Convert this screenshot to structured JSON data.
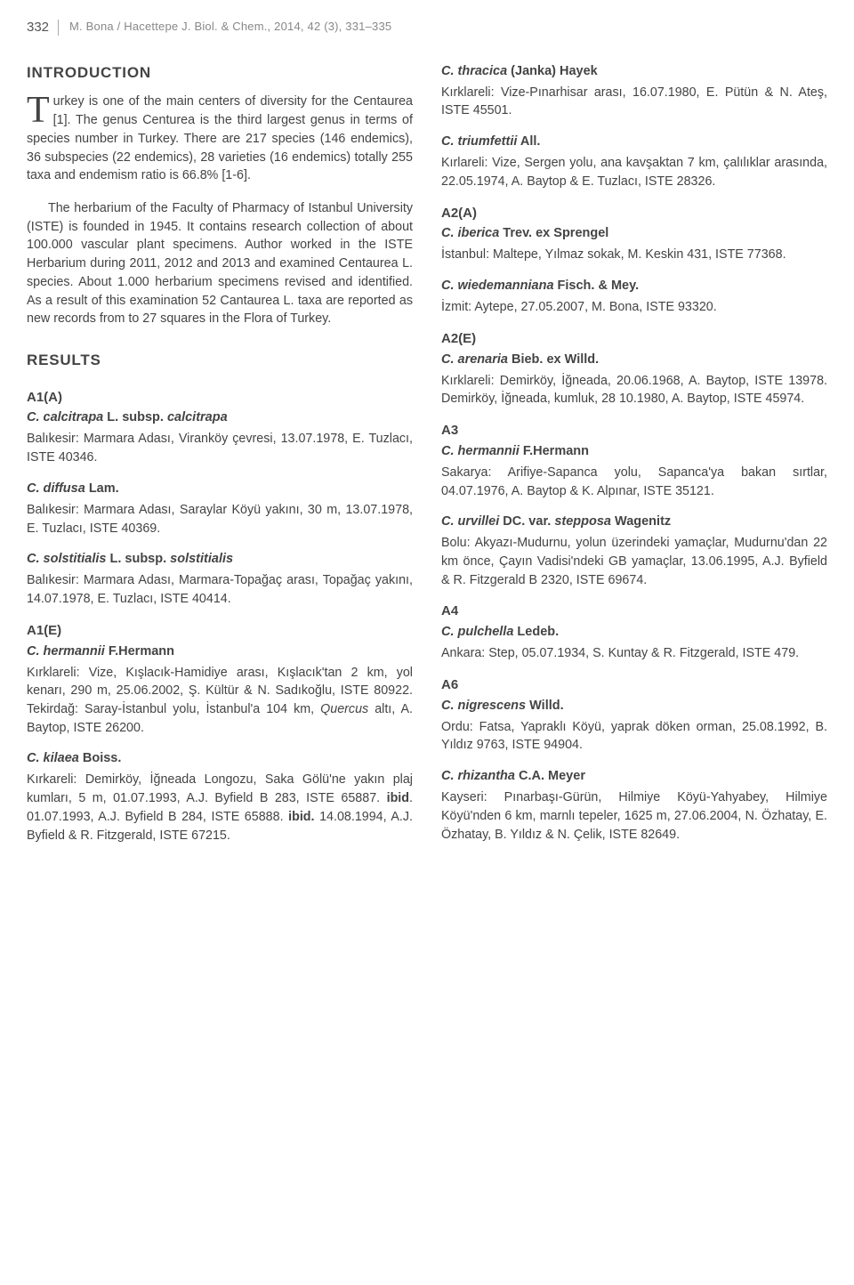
{
  "header": {
    "page_number": "332",
    "running_head": "M. Bona / Hacettepe J. Biol. & Chem., 2014, 42 (3), 331–335"
  },
  "left": {
    "intro_title": "INTRODUCTION",
    "intro_p1_first": "T",
    "intro_p1_rest": "urkey is one of the main centers of diversity for the Centaurea [1]. The genus Centurea is the third largest genus in terms of species number in Turkey. There are 217 species (146 endemics), 36 subspecies (22 endemics), 28 varieties (16 endemics) totally 255 taxa and endemism ratio is 66.8% [1-6].",
    "intro_p2": "The herbarium of the Faculty of Pharmacy of Istanbul University (ISTE) is founded in 1945. It contains research collection of about 100.000 vascular plant specimens. Author worked in the ISTE Herbarium during 2011, 2012 and 2013 and examined Centaurea L. species. About 1.000 herbarium specimens revised and identified. As a result of this examination 52 Cantaurea L. taxa are reported as new records from to 27 squares in the Flora of Turkey.",
    "results_title": "RESULTS",
    "a1a_head": "A1(A)",
    "a1a_sp1_name_i": "C. calcitrapa",
    "a1a_sp1_name_m": " L. subsp. ",
    "a1a_sp1_name_i2": "calcitrapa",
    "a1a_sp1_entry": "Balıkesir: Marmara Adası, Viranköy çevresi, 13.07.1978, E. Tuzlacı, ISTE 40346.",
    "a1a_sp2_name_i": "C. diffusa",
    "a1a_sp2_name_b": " Lam.",
    "a1a_sp2_entry": "Balıkesir: Marmara Adası, Saraylar Köyü yakını, 30 m, 13.07.1978, E. Tuzlacı, ISTE 40369.",
    "a1a_sp3_name_i": "C. solstitialis",
    "a1a_sp3_name_m": " L. subsp. ",
    "a1a_sp3_name_i2": "solstitialis",
    "a1a_sp3_entry": "Balıkesir: Marmara Adası, Marmara-Topağaç arası, Topağaç yakını, 14.07.1978, E. Tuzlacı, ISTE 40414.",
    "a1e_head": "A1(E)",
    "a1e_sp1_name_i": "C. hermannii",
    "a1e_sp1_name_b": " F.Hermann",
    "a1e_sp1_entry_a": "Kırklareli: Vize, Kışlacık-Hamidiye arası, Kışlacık'tan 2 km, yol kenarı, 290 m, 25.06.2002, Ş. Kültür & N. Sadıkoğlu, ISTE 80922. Tekirdağ: Saray-İstanbul yolu, İstanbul'a 104 km, ",
    "a1e_sp1_entry_i": "Quercus",
    "a1e_sp1_entry_b": " altı, A. Baytop, ISTE 26200.",
    "a1e_sp2_name_i": "C. kilaea",
    "a1e_sp2_name_b": " Boiss.",
    "a1e_sp2_entry_a": "Kırkareli: Demirköy, İğneada Longozu, Saka Gölü'ne yakın plaj kumları, 5 m, 01.07.1993, A.J. Byfield B 283, ISTE 65887. ",
    "a1e_sp2_ibid1": "ibid",
    "a1e_sp2_entry_b": ". 01.07.1993, A.J. Byfield B 284, ISTE 65888. ",
    "a1e_sp2_ibid2": "ibid.",
    "a1e_sp2_entry_c": " 14.08.1994, A.J. Byfield & R. Fitzgerald, ISTE 67215."
  },
  "right": {
    "r1_name_i": "C. thracica",
    "r1_name_b": " (Janka) Hayek",
    "r1_entry": "Kırklareli: Vize-Pınarhisar arası, 16.07.1980, E. Pütün & N. Ateş, ISTE 45501.",
    "r2_name_i": "C. triumfettii",
    "r2_name_b": " All.",
    "r2_entry": "Kırlareli: Vize, Sergen yolu, ana kavşaktan 7 km, çalılıklar arasında, 22.05.1974, A. Baytop & E. Tuzlacı, ISTE 28326.",
    "a2a_head": "A2(A)",
    "a2a_sp1_name_i": "C. iberica",
    "a2a_sp1_name_b": " Trev. ex Sprengel",
    "a2a_sp1_entry": "İstanbul: Maltepe, Yılmaz sokak, M. Keskin 431, ISTE 77368.",
    "a2a_sp2_name_i": "C. wiedemanniana",
    "a2a_sp2_name_b": " Fisch. & Mey.",
    "a2a_sp2_entry": "İzmit: Aytepe, 27.05.2007, M. Bona, ISTE 93320.",
    "a2e_head": "A2(E)",
    "a2e_sp1_name_i": "C. arenaria",
    "a2e_sp1_name_b": " Bieb. ex Willd.",
    "a2e_sp1_entry": "Kırklareli: Demirköy, İğneada, 20.06.1968, A. Baytop, ISTE 13978. Demirköy, İğneada, kumluk, 28 10.1980, A. Baytop, ISTE 45974.",
    "a3_head": "A3",
    "a3_sp1_name_i": "C. hermannii",
    "a3_sp1_name_b": " F.Hermann",
    "a3_sp1_entry": "Sakarya: Arifiye-Sapanca yolu, Sapanca'ya bakan sırtlar, 04.07.1976, A. Baytop & K. Alpınar, ISTE 35121.",
    "a3_sp2_name_i": "C. urvillei",
    "a3_sp2_name_m": " DC. var. ",
    "a3_sp2_name_i2": "stepposa",
    "a3_sp2_name_b": " Wagenitz",
    "a3_sp2_entry": "Bolu: Akyazı-Mudurnu, yolun üzerindeki yamaçlar, Mudurnu'dan 22 km önce, Çayın Vadisi'ndeki GB yamaçlar, 13.06.1995, A.J. Byfield & R. Fitzgerald B 2320, ISTE 69674.",
    "a4_head": "A4",
    "a4_sp1_name_i": "C. pulchella",
    "a4_sp1_name_b": " Ledeb.",
    "a4_sp1_entry": "Ankara: Step, 05.07.1934, S. Kuntay & R. Fitzgerald, ISTE 479.",
    "a6_head": "A6",
    "a6_sp1_name_i": "C. nigrescens",
    "a6_sp1_name_b": " Willd.",
    "a6_sp1_entry": "Ordu: Fatsa, Yapraklı Köyü, yaprak döken orman, 25.08.1992, B. Yıldız 9763, ISTE 94904.",
    "a6_sp2_name_i": "C. rhizantha",
    "a6_sp2_name_b": " C.A. Meyer",
    "a6_sp2_entry": "Kayseri: Pınarbaşı-Gürün, Hilmiye Köyü-Yahyabey, Hilmiye Köyü'nden 6 km, marnlı tepeler, 1625 m, 27.06.2004, N. Özhatay, E. Özhatay, B. Yıldız & N. Çelik, ISTE 82649."
  }
}
